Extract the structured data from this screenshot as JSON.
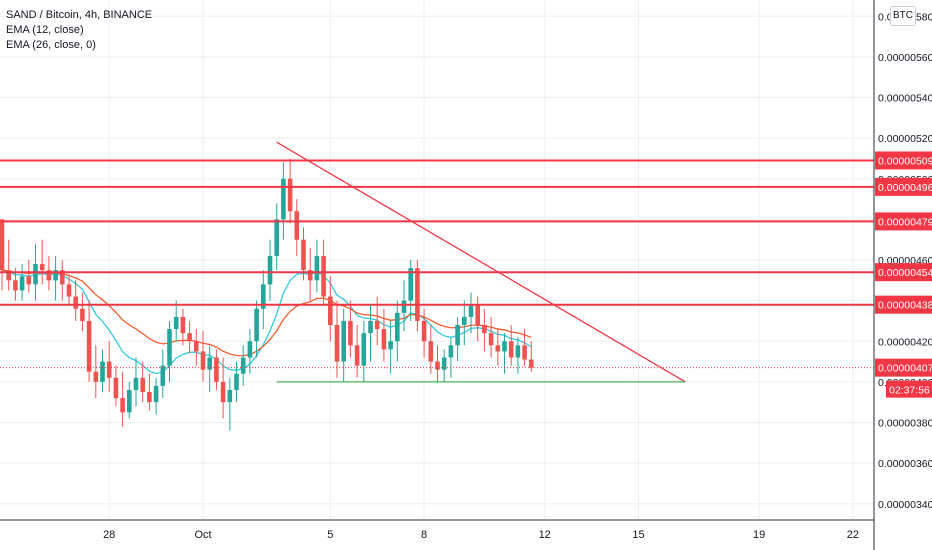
{
  "legend": {
    "symbol": "SAND / Bitcoin, 4h, BINANCE",
    "ema1": "EMA (12, close)",
    "ema2": "EMA (26, close, 0)"
  },
  "currency_button": "BTC",
  "chart_data": {
    "type": "candlestick",
    "title": "SAND / Bitcoin, 4h, BINANCE",
    "y_axis": {
      "ticks": [
        "0.00000340",
        "0.00000360",
        "0.00000380",
        "0.00000400",
        "0.00000420",
        "0.00000440",
        "0.00000460",
        "0.00000480",
        "0.00000500",
        "0.00000520",
        "0.00000540",
        "0.00000560",
        "0.00000580"
      ],
      "tick_values": [
        340,
        360,
        380,
        400,
        420,
        440,
        460,
        480,
        500,
        520,
        540,
        560,
        580
      ],
      "range": [
        332,
        588
      ],
      "unit_note": "values ×1e-8 BTC"
    },
    "x_axis": {
      "ticks": [
        "28",
        "Oct",
        "5",
        "8",
        "12",
        "15",
        "19",
        "22"
      ],
      "tick_candle_index": [
        16,
        30,
        49,
        63,
        81,
        95,
        113,
        127
      ]
    },
    "horizontal_levels": [
      {
        "label": "0.00000509",
        "value": 509,
        "color": "#f23645"
      },
      {
        "label": "0.00000496",
        "value": 496,
        "color": "#f23645"
      },
      {
        "label": "0.00000479",
        "value": 479,
        "color": "#f23645"
      },
      {
        "label": "0.00000454",
        "value": 454,
        "color": "#f23645"
      },
      {
        "label": "0.00000438",
        "value": 438,
        "color": "#f23645"
      }
    ],
    "last_price": {
      "label": "0.00000407",
      "value": 407,
      "countdown": "02:37:56",
      "color": "#f23645"
    },
    "trendlines": [
      {
        "name": "descending-resistance",
        "from": [
          41,
          518
        ],
        "to": [
          102,
          400
        ],
        "color": "#f23645"
      },
      {
        "name": "horizontal-support",
        "from": [
          41,
          400
        ],
        "to": [
          102,
          400
        ],
        "color": "#4caf50"
      }
    ],
    "candle_colors": {
      "up": "#26a69a",
      "down": "#ef5350"
    },
    "ema_colors": {
      "ema12": "#26c6da",
      "ema26": "#f4511e"
    },
    "candles": [
      [
        480,
        480,
        445,
        455
      ],
      [
        455,
        470,
        445,
        450
      ],
      [
        450,
        456,
        440,
        445
      ],
      [
        445,
        458,
        440,
        452
      ],
      [
        452,
        460,
        444,
        448
      ],
      [
        448,
        468,
        440,
        458
      ],
      [
        458,
        470,
        448,
        455
      ],
      [
        455,
        462,
        445,
        450
      ],
      [
        450,
        462,
        440,
        455
      ],
      [
        455,
        460,
        440,
        448
      ],
      [
        448,
        452,
        438,
        442
      ],
      [
        442,
        450,
        430,
        436
      ],
      [
        436,
        444,
        425,
        430
      ],
      [
        430,
        440,
        400,
        405
      ],
      [
        405,
        418,
        392,
        400
      ],
      [
        400,
        416,
        395,
        410
      ],
      [
        410,
        420,
        395,
        402
      ],
      [
        402,
        408,
        388,
        392
      ],
      [
        392,
        405,
        378,
        385
      ],
      [
        385,
        400,
        382,
        396
      ],
      [
        396,
        412,
        388,
        402
      ],
      [
        402,
        410,
        390,
        395
      ],
      [
        395,
        404,
        386,
        390
      ],
      [
        390,
        402,
        384,
        398
      ],
      [
        398,
        416,
        392,
        408
      ],
      [
        408,
        430,
        400,
        426
      ],
      [
        426,
        440,
        420,
        432
      ],
      [
        432,
        436,
        418,
        424
      ],
      [
        424,
        430,
        414,
        420
      ],
      [
        420,
        426,
        408,
        415
      ],
      [
        415,
        425,
        400,
        406
      ],
      [
        406,
        418,
        395,
        412
      ],
      [
        412,
        416,
        396,
        400
      ],
      [
        400,
        412,
        382,
        390
      ],
      [
        390,
        402,
        376,
        396
      ],
      [
        396,
        410,
        390,
        404
      ],
      [
        404,
        418,
        398,
        412
      ],
      [
        412,
        426,
        404,
        420
      ],
      [
        420,
        440,
        412,
        436
      ],
      [
        436,
        455,
        426,
        448
      ],
      [
        448,
        470,
        440,
        462
      ],
      [
        462,
        488,
        455,
        480
      ],
      [
        480,
        508,
        470,
        500
      ],
      [
        500,
        510,
        478,
        484
      ],
      [
        484,
        490,
        462,
        470
      ],
      [
        470,
        476,
        450,
        455
      ],
      [
        455,
        466,
        440,
        450
      ],
      [
        450,
        470,
        444,
        462
      ],
      [
        462,
        470,
        438,
        442
      ],
      [
        442,
        452,
        420,
        428
      ],
      [
        428,
        440,
        402,
        410
      ],
      [
        410,
        436,
        400,
        430
      ],
      [
        430,
        440,
        412,
        418
      ],
      [
        418,
        428,
        402,
        408
      ],
      [
        408,
        430,
        400,
        424
      ],
      [
        424,
        438,
        410,
        430
      ],
      [
        430,
        442,
        418,
        426
      ],
      [
        426,
        436,
        410,
        416
      ],
      [
        416,
        430,
        404,
        420
      ],
      [
        420,
        440,
        410,
        434
      ],
      [
        434,
        450,
        425,
        440
      ],
      [
        440,
        460,
        430,
        456
      ],
      [
        456,
        460,
        425,
        430
      ],
      [
        430,
        436,
        412,
        420
      ],
      [
        420,
        428,
        404,
        410
      ],
      [
        410,
        418,
        400,
        406
      ],
      [
        406,
        416,
        400,
        412
      ],
      [
        412,
        422,
        402,
        418
      ],
      [
        418,
        432,
        410,
        428
      ],
      [
        428,
        440,
        418,
        432
      ],
      [
        432,
        444,
        424,
        438
      ],
      [
        438,
        442,
        420,
        428
      ],
      [
        428,
        436,
        415,
        424
      ],
      [
        424,
        432,
        412,
        418
      ],
      [
        418,
        426,
        408,
        415
      ],
      [
        415,
        424,
        404,
        420
      ],
      [
        420,
        428,
        408,
        412
      ],
      [
        412,
        422,
        404,
        418
      ],
      [
        418,
        426,
        408,
        411
      ],
      [
        411,
        420,
        405,
        407
      ]
    ]
  }
}
